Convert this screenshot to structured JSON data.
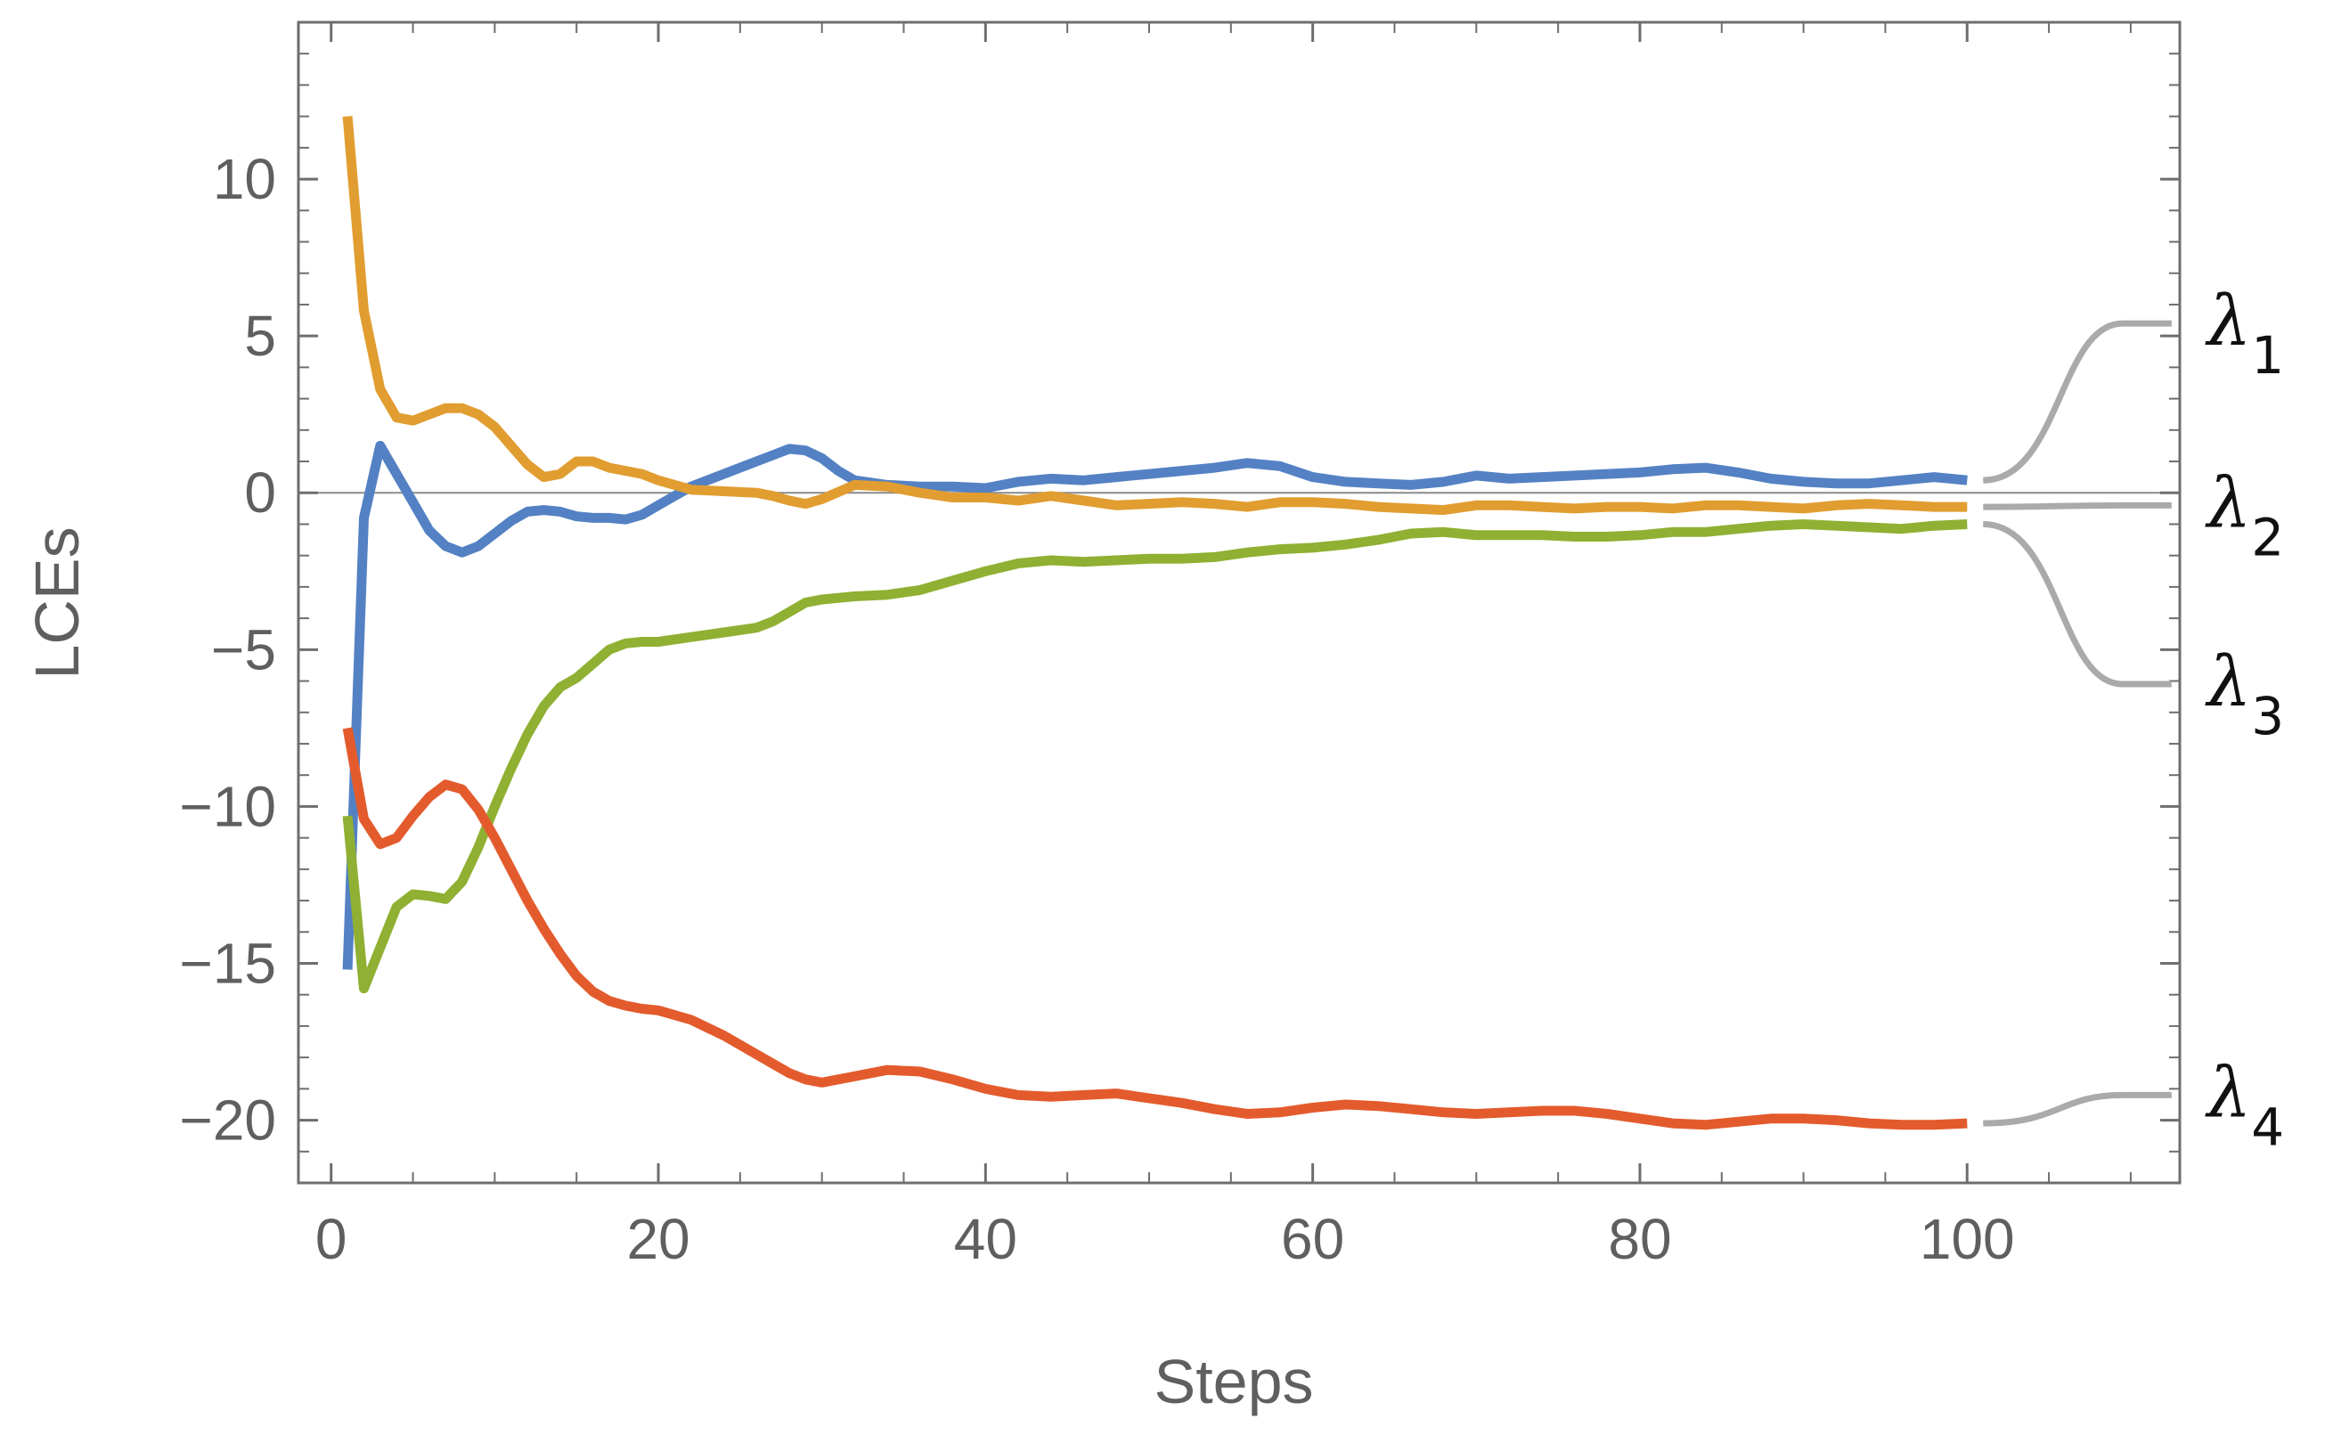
{
  "chart_data": {
    "type": "line",
    "title": "",
    "xlabel": "Steps",
    "ylabel": "LCEs",
    "xlim": [
      -2,
      113
    ],
    "ylim": [
      -22,
      15
    ],
    "x_ticks": [
      0,
      20,
      40,
      60,
      80,
      100
    ],
    "x_tick_labels": [
      "0",
      "20",
      "40",
      "60",
      "80",
      "100"
    ],
    "y_ticks": [
      -20,
      -15,
      -10,
      -5,
      0,
      5,
      10
    ],
    "y_tick_labels": [
      "−20",
      "−15",
      "−10",
      "−5",
      "0",
      "5",
      "10"
    ],
    "grid": false,
    "zero_line": true,
    "series": [
      {
        "label_text": "λ",
        "label_sub": "1",
        "color": "#5481c3",
        "label_y": 5.4,
        "points": [
          [
            1,
            -15.2
          ],
          [
            2,
            -0.8
          ],
          [
            3,
            1.5
          ],
          [
            4,
            0.6
          ],
          [
            5,
            -0.3
          ],
          [
            6,
            -1.2
          ],
          [
            7,
            -1.7
          ],
          [
            8,
            -1.9
          ],
          [
            9,
            -1.7
          ],
          [
            10,
            -1.3
          ],
          [
            11,
            -0.9
          ],
          [
            12,
            -0.6
          ],
          [
            13,
            -0.55
          ],
          [
            14,
            -0.6
          ],
          [
            15,
            -0.75
          ],
          [
            16,
            -0.8
          ],
          [
            17,
            -0.8
          ],
          [
            18,
            -0.85
          ],
          [
            19,
            -0.7
          ],
          [
            20,
            -0.4
          ],
          [
            22,
            0.2
          ],
          [
            24,
            0.6
          ],
          [
            26,
            1.0
          ],
          [
            27,
            1.2
          ],
          [
            28,
            1.4
          ],
          [
            29,
            1.35
          ],
          [
            30,
            1.1
          ],
          [
            31,
            0.7
          ],
          [
            32,
            0.4
          ],
          [
            34,
            0.25
          ],
          [
            36,
            0.2
          ],
          [
            38,
            0.2
          ],
          [
            40,
            0.15
          ],
          [
            42,
            0.35
          ],
          [
            44,
            0.45
          ],
          [
            46,
            0.4
          ],
          [
            48,
            0.5
          ],
          [
            50,
            0.6
          ],
          [
            52,
            0.7
          ],
          [
            54,
            0.8
          ],
          [
            56,
            0.95
          ],
          [
            58,
            0.85
          ],
          [
            60,
            0.5
          ],
          [
            62,
            0.35
          ],
          [
            64,
            0.3
          ],
          [
            66,
            0.25
          ],
          [
            68,
            0.35
          ],
          [
            70,
            0.55
          ],
          [
            72,
            0.45
          ],
          [
            74,
            0.5
          ],
          [
            76,
            0.55
          ],
          [
            78,
            0.6
          ],
          [
            80,
            0.65
          ],
          [
            82,
            0.75
          ],
          [
            84,
            0.8
          ],
          [
            86,
            0.65
          ],
          [
            88,
            0.45
          ],
          [
            90,
            0.35
          ],
          [
            92,
            0.3
          ],
          [
            94,
            0.3
          ],
          [
            96,
            0.4
          ],
          [
            98,
            0.5
          ],
          [
            100,
            0.4
          ]
        ]
      },
      {
        "label_text": "λ",
        "label_sub": "2",
        "color": "#e19d30",
        "label_y": -0.4,
        "points": [
          [
            1,
            12.0
          ],
          [
            2,
            5.8
          ],
          [
            3,
            3.3
          ],
          [
            4,
            2.4
          ],
          [
            5,
            2.3
          ],
          [
            6,
            2.5
          ],
          [
            7,
            2.7
          ],
          [
            8,
            2.7
          ],
          [
            9,
            2.5
          ],
          [
            10,
            2.1
          ],
          [
            11,
            1.5
          ],
          [
            12,
            0.9
          ],
          [
            13,
            0.5
          ],
          [
            14,
            0.6
          ],
          [
            15,
            1.0
          ],
          [
            16,
            1.0
          ],
          [
            17,
            0.8
          ],
          [
            18,
            0.7
          ],
          [
            19,
            0.6
          ],
          [
            20,
            0.4
          ],
          [
            22,
            0.1
          ],
          [
            24,
            0.05
          ],
          [
            26,
            0.0
          ],
          [
            27,
            -0.1
          ],
          [
            28,
            -0.25
          ],
          [
            29,
            -0.35
          ],
          [
            30,
            -0.2
          ],
          [
            32,
            0.25
          ],
          [
            34,
            0.2
          ],
          [
            36,
            0.0
          ],
          [
            38,
            -0.15
          ],
          [
            40,
            -0.15
          ],
          [
            42,
            -0.25
          ],
          [
            44,
            -0.1
          ],
          [
            46,
            -0.25
          ],
          [
            48,
            -0.4
          ],
          [
            50,
            -0.35
          ],
          [
            52,
            -0.3
          ],
          [
            54,
            -0.35
          ],
          [
            56,
            -0.45
          ],
          [
            58,
            -0.3
          ],
          [
            60,
            -0.3
          ],
          [
            62,
            -0.35
          ],
          [
            64,
            -0.45
          ],
          [
            66,
            -0.5
          ],
          [
            68,
            -0.55
          ],
          [
            70,
            -0.4
          ],
          [
            72,
            -0.4
          ],
          [
            74,
            -0.45
          ],
          [
            76,
            -0.5
          ],
          [
            78,
            -0.45
          ],
          [
            80,
            -0.45
          ],
          [
            82,
            -0.5
          ],
          [
            84,
            -0.4
          ],
          [
            86,
            -0.4
          ],
          [
            88,
            -0.45
          ],
          [
            90,
            -0.5
          ],
          [
            92,
            -0.4
          ],
          [
            94,
            -0.35
          ],
          [
            96,
            -0.4
          ],
          [
            98,
            -0.45
          ],
          [
            100,
            -0.45
          ]
        ]
      },
      {
        "label_text": "λ",
        "label_sub": "3",
        "color": "#8fb032",
        "label_y": -6.1,
        "points": [
          [
            1,
            -10.3
          ],
          [
            2,
            -15.8
          ],
          [
            3,
            -14.5
          ],
          [
            4,
            -13.2
          ],
          [
            5,
            -12.8
          ],
          [
            6,
            -12.85
          ],
          [
            7,
            -12.95
          ],
          [
            8,
            -12.4
          ],
          [
            9,
            -11.3
          ],
          [
            10,
            -10.0
          ],
          [
            11,
            -8.8
          ],
          [
            12,
            -7.7
          ],
          [
            13,
            -6.8
          ],
          [
            14,
            -6.2
          ],
          [
            15,
            -5.9
          ],
          [
            16,
            -5.45
          ],
          [
            17,
            -5.0
          ],
          [
            18,
            -4.8
          ],
          [
            19,
            -4.75
          ],
          [
            20,
            -4.75
          ],
          [
            22,
            -4.6
          ],
          [
            24,
            -4.45
          ],
          [
            26,
            -4.3
          ],
          [
            27,
            -4.1
          ],
          [
            28,
            -3.8
          ],
          [
            29,
            -3.5
          ],
          [
            30,
            -3.4
          ],
          [
            32,
            -3.3
          ],
          [
            34,
            -3.25
          ],
          [
            36,
            -3.1
          ],
          [
            38,
            -2.8
          ],
          [
            40,
            -2.5
          ],
          [
            42,
            -2.25
          ],
          [
            44,
            -2.15
          ],
          [
            46,
            -2.2
          ],
          [
            48,
            -2.15
          ],
          [
            50,
            -2.1
          ],
          [
            52,
            -2.1
          ],
          [
            54,
            -2.05
          ],
          [
            56,
            -1.9
          ],
          [
            58,
            -1.8
          ],
          [
            60,
            -1.75
          ],
          [
            62,
            -1.65
          ],
          [
            64,
            -1.5
          ],
          [
            66,
            -1.3
          ],
          [
            68,
            -1.25
          ],
          [
            70,
            -1.35
          ],
          [
            72,
            -1.35
          ],
          [
            74,
            -1.35
          ],
          [
            76,
            -1.4
          ],
          [
            78,
            -1.4
          ],
          [
            80,
            -1.35
          ],
          [
            82,
            -1.25
          ],
          [
            84,
            -1.25
          ],
          [
            86,
            -1.15
          ],
          [
            88,
            -1.05
          ],
          [
            90,
            -1.0
          ],
          [
            92,
            -1.05
          ],
          [
            94,
            -1.1
          ],
          [
            96,
            -1.15
          ],
          [
            98,
            -1.05
          ],
          [
            100,
            -1.0
          ]
        ]
      },
      {
        "label_text": "λ",
        "label_sub": "4",
        "color": "#e35b2d",
        "label_y": -19.2,
        "points": [
          [
            1,
            -7.5
          ],
          [
            2,
            -10.4
          ],
          [
            3,
            -11.2
          ],
          [
            4,
            -11.0
          ],
          [
            5,
            -10.3
          ],
          [
            6,
            -9.7
          ],
          [
            7,
            -9.3
          ],
          [
            8,
            -9.45
          ],
          [
            9,
            -10.1
          ],
          [
            10,
            -11.0
          ],
          [
            11,
            -12.0
          ],
          [
            12,
            -13.0
          ],
          [
            13,
            -13.9
          ],
          [
            14,
            -14.7
          ],
          [
            15,
            -15.4
          ],
          [
            16,
            -15.9
          ],
          [
            17,
            -16.2
          ],
          [
            18,
            -16.35
          ],
          [
            19,
            -16.45
          ],
          [
            20,
            -16.5
          ],
          [
            22,
            -16.8
          ],
          [
            24,
            -17.3
          ],
          [
            26,
            -17.9
          ],
          [
            27,
            -18.2
          ],
          [
            28,
            -18.5
          ],
          [
            29,
            -18.7
          ],
          [
            30,
            -18.8
          ],
          [
            32,
            -18.6
          ],
          [
            34,
            -18.4
          ],
          [
            36,
            -18.45
          ],
          [
            38,
            -18.7
          ],
          [
            40,
            -19.0
          ],
          [
            42,
            -19.2
          ],
          [
            44,
            -19.25
          ],
          [
            46,
            -19.2
          ],
          [
            48,
            -19.15
          ],
          [
            50,
            -19.3
          ],
          [
            52,
            -19.45
          ],
          [
            54,
            -19.65
          ],
          [
            56,
            -19.8
          ],
          [
            58,
            -19.75
          ],
          [
            60,
            -19.6
          ],
          [
            62,
            -19.5
          ],
          [
            64,
            -19.55
          ],
          [
            66,
            -19.65
          ],
          [
            68,
            -19.75
          ],
          [
            70,
            -19.8
          ],
          [
            72,
            -19.75
          ],
          [
            74,
            -19.7
          ],
          [
            76,
            -19.7
          ],
          [
            78,
            -19.8
          ],
          [
            80,
            -19.95
          ],
          [
            82,
            -20.1
          ],
          [
            84,
            -20.15
          ],
          [
            86,
            -20.05
          ],
          [
            88,
            -19.95
          ],
          [
            90,
            -19.95
          ],
          [
            92,
            -20.0
          ],
          [
            94,
            -20.1
          ],
          [
            96,
            -20.15
          ],
          [
            98,
            -20.15
          ],
          [
            100,
            -20.1
          ]
        ]
      }
    ],
    "label_connector_color": "#aaaaaa"
  }
}
